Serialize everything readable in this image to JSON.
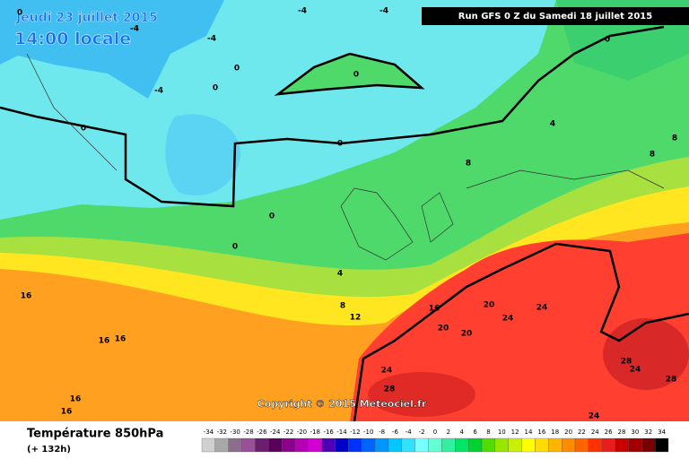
{
  "header": {
    "date": "Jeudi 23 juillet 2015",
    "time": "14:00 locale",
    "run": "Run GFS 0 Z du Samedi 18 juillet 2015"
  },
  "footer": {
    "title": "Température 850hPa",
    "lead": "(+ 132h)",
    "copyright": "Copyright © 2015 Meteociel.fr"
  },
  "contour_labels": [
    -4,
    -4,
    -4,
    -4,
    -4,
    0,
    0,
    0,
    0,
    0,
    0,
    0,
    0,
    0,
    4,
    4,
    8,
    8,
    8,
    8,
    12,
    16,
    16,
    16,
    16,
    16,
    16,
    20,
    20,
    20,
    24,
    24,
    24,
    24,
    24,
    28,
    28,
    28
  ],
  "legend": {
    "values": [
      -34,
      -32,
      -30,
      -28,
      -26,
      -24,
      -22,
      -20,
      -18,
      -16,
      -14,
      -12,
      -10,
      -8,
      -6,
      -4,
      -2,
      0,
      2,
      4,
      6,
      8,
      10,
      12,
      14,
      16,
      18,
      20,
      22,
      24,
      26,
      28,
      30,
      32,
      34
    ],
    "colors": [
      "#d0d0d0",
      "#a8a8a8",
      "#8c6e8c",
      "#9b4f9b",
      "#6e1e6e",
      "#5a005a",
      "#8c008c",
      "#b400b4",
      "#d200d2",
      "#5000b4",
      "#0000c8",
      "#0032ff",
      "#0064ff",
      "#0096ff",
      "#00c8ff",
      "#32e1ff",
      "#78ffff",
      "#64ffd2",
      "#32f0a0",
      "#00e664",
      "#00d232",
      "#50dc00",
      "#96e600",
      "#c8f000",
      "#ffff00",
      "#ffdc00",
      "#ffb400",
      "#ff8c00",
      "#ff6400",
      "#ff3200",
      "#e61e1e",
      "#c80000",
      "#a00000",
      "#780000",
      "#000000"
    ]
  }
}
